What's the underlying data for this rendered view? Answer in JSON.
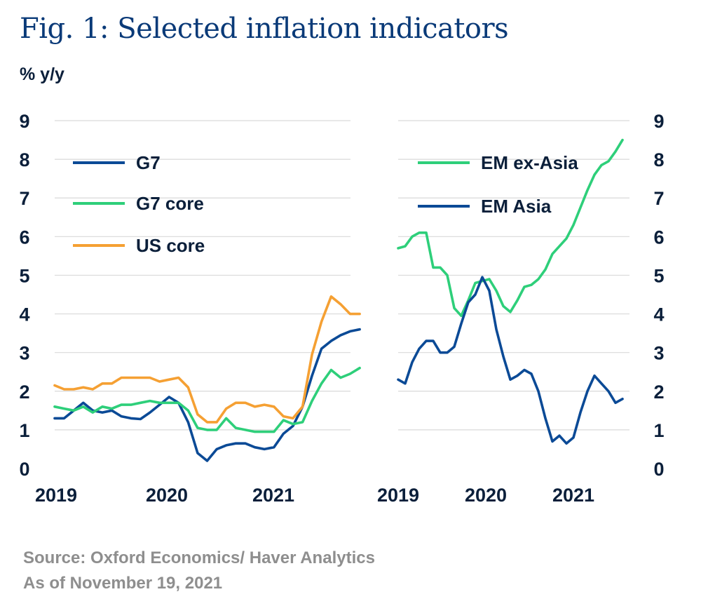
{
  "title": "Fig. 1: Selected inflation indicators",
  "unit_label": "% y/y",
  "source": "Source: Oxford Economics/ Haver Analytics",
  "as_of": "As of November 19, 2021",
  "colors": {
    "navy": "#0b4a96",
    "green": "#2ecf7a",
    "orange": "#f5a033",
    "text": "#0b1f3a",
    "title": "#0a3a78",
    "grey": "#8e8e8e"
  },
  "chart_data": [
    {
      "type": "line",
      "ylim": [
        0,
        9
      ],
      "yticks": [
        0,
        1,
        2,
        3,
        4,
        5,
        6,
        7,
        8,
        9
      ],
      "xlim": [
        2019.0,
        2021.85
      ],
      "xticks": [
        "2019",
        "2020",
        "2021"
      ],
      "legend_position": "top-left",
      "series": [
        {
          "name": "G7",
          "color": "#0b4a96",
          "x": [
            2019.0,
            2019.083,
            2019.167,
            2019.25,
            2019.333,
            2019.417,
            2019.5,
            2019.583,
            2019.667,
            2019.75,
            2019.833,
            2019.917,
            2020.0,
            2020.083,
            2020.167,
            2020.25,
            2020.333,
            2020.417,
            2020.5,
            2020.583,
            2020.667,
            2020.75,
            2020.833,
            2020.917,
            2021.0,
            2021.083,
            2021.167,
            2021.25,
            2021.333,
            2021.417,
            2021.5,
            2021.583,
            2021.667
          ],
          "values": [
            1.3,
            1.3,
            1.5,
            1.7,
            1.5,
            1.45,
            1.5,
            1.35,
            1.3,
            1.28,
            1.45,
            1.65,
            1.85,
            1.7,
            1.2,
            0.4,
            0.2,
            0.5,
            0.6,
            0.65,
            0.65,
            0.55,
            0.5,
            0.55,
            0.9,
            1.1,
            1.6,
            2.4,
            3.1,
            3.3,
            3.45,
            3.55,
            3.6
          ]
        },
        {
          "name": "G7 core",
          "color": "#2ecf7a",
          "x": [
            2019.0,
            2019.083,
            2019.167,
            2019.25,
            2019.333,
            2019.417,
            2019.5,
            2019.583,
            2019.667,
            2019.75,
            2019.833,
            2019.917,
            2020.0,
            2020.083,
            2020.167,
            2020.25,
            2020.333,
            2020.417,
            2020.5,
            2020.583,
            2020.667,
            2020.75,
            2020.833,
            2020.917,
            2021.0,
            2021.083,
            2021.167,
            2021.25,
            2021.333,
            2021.417,
            2021.5,
            2021.583,
            2021.667
          ],
          "values": [
            1.6,
            1.55,
            1.5,
            1.6,
            1.45,
            1.6,
            1.55,
            1.65,
            1.65,
            1.7,
            1.75,
            1.7,
            1.7,
            1.7,
            1.5,
            1.05,
            1.0,
            1.0,
            1.3,
            1.05,
            1.0,
            0.95,
            0.95,
            0.95,
            1.25,
            1.15,
            1.2,
            1.75,
            2.2,
            2.55,
            2.35,
            2.45,
            2.6
          ]
        },
        {
          "name": "US core",
          "color": "#f5a033",
          "x": [
            2019.0,
            2019.083,
            2019.167,
            2019.25,
            2019.333,
            2019.417,
            2019.5,
            2019.583,
            2019.667,
            2019.75,
            2019.833,
            2019.917,
            2020.0,
            2020.083,
            2020.167,
            2020.25,
            2020.333,
            2020.417,
            2020.5,
            2020.583,
            2020.667,
            2020.75,
            2020.833,
            2020.917,
            2021.0,
            2021.083,
            2021.167,
            2021.25,
            2021.333,
            2021.417,
            2021.5,
            2021.583,
            2021.667
          ],
          "values": [
            2.15,
            2.05,
            2.05,
            2.1,
            2.05,
            2.2,
            2.2,
            2.35,
            2.35,
            2.35,
            2.35,
            2.25,
            2.3,
            2.35,
            2.1,
            1.4,
            1.2,
            1.2,
            1.55,
            1.7,
            1.7,
            1.6,
            1.65,
            1.6,
            1.35,
            1.3,
            1.6,
            2.95,
            3.8,
            4.45,
            4.25,
            4.0,
            4.0
          ]
        }
      ]
    },
    {
      "type": "line",
      "ylim": [
        0,
        9
      ],
      "yticks": [
        0,
        1,
        2,
        3,
        4,
        5,
        6,
        7,
        8,
        9
      ],
      "xlim": [
        2019.0,
        2021.75
      ],
      "xticks": [
        "2019",
        "2020",
        "2021"
      ],
      "legend_position": "top-right",
      "series": [
        {
          "name": "EM ex-Asia",
          "color": "#2ecf7a",
          "x": [
            2019.0,
            2019.083,
            2019.167,
            2019.25,
            2019.333,
            2019.417,
            2019.5,
            2019.583,
            2019.667,
            2019.75,
            2019.833,
            2019.917,
            2020.0,
            2020.083,
            2020.167,
            2020.25,
            2020.333,
            2020.417,
            2020.5,
            2020.583,
            2020.667,
            2020.75,
            2020.833,
            2020.917,
            2021.0,
            2021.083,
            2021.167,
            2021.25,
            2021.333,
            2021.417,
            2021.5,
            2021.583,
            2021.667
          ],
          "values": [
            5.7,
            5.75,
            6.0,
            6.1,
            6.1,
            5.2,
            5.2,
            5.0,
            4.15,
            3.95,
            4.35,
            4.8,
            4.85,
            4.9,
            4.6,
            4.2,
            4.05,
            4.35,
            4.7,
            4.75,
            4.9,
            5.15,
            5.55,
            5.75,
            5.95,
            6.3,
            6.75,
            7.2,
            7.6,
            7.85,
            7.95,
            8.2,
            8.5
          ]
        },
        {
          "name": "EM Asia",
          "color": "#0b4a96",
          "x": [
            2019.0,
            2019.083,
            2019.167,
            2019.25,
            2019.333,
            2019.417,
            2019.5,
            2019.583,
            2019.667,
            2019.75,
            2019.833,
            2019.917,
            2020.0,
            2020.083,
            2020.167,
            2020.25,
            2020.333,
            2020.417,
            2020.5,
            2020.583,
            2020.667,
            2020.75,
            2020.833,
            2020.917,
            2021.0,
            2021.083,
            2021.167,
            2021.25,
            2021.333,
            2021.417,
            2021.5,
            2021.583,
            2021.667
          ],
          "values": [
            2.3,
            2.2,
            2.75,
            3.1,
            3.3,
            3.3,
            3.0,
            3.0,
            3.15,
            3.75,
            4.3,
            4.5,
            4.95,
            4.6,
            3.6,
            2.9,
            2.3,
            2.4,
            2.55,
            2.45,
            2.0,
            1.3,
            0.7,
            0.85,
            0.65,
            0.8,
            1.45,
            2.0,
            2.4,
            2.2,
            2.0,
            1.7,
            1.8
          ]
        }
      ]
    }
  ]
}
